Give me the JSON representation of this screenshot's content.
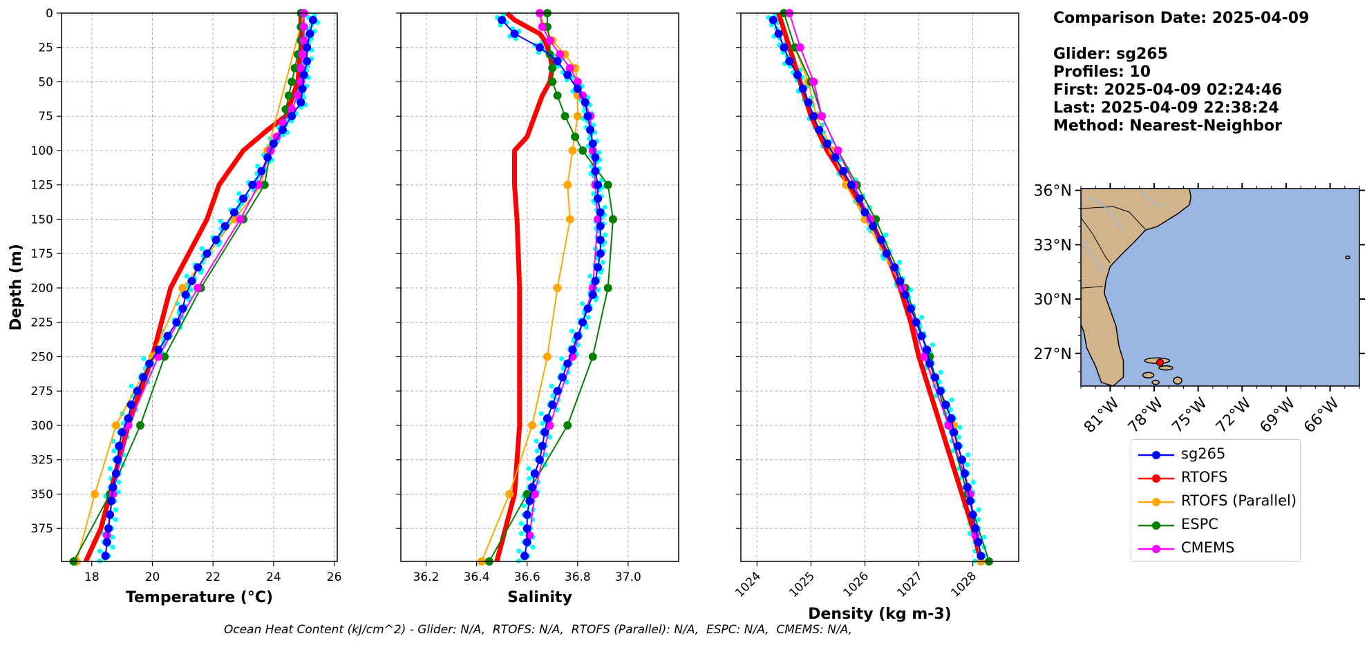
{
  "info": {
    "comparison_date": "Comparison Date: 2025-04-09",
    "glider": "Glider: sg265",
    "profiles": "Profiles: 10",
    "first": "First: 2025-04-09 02:24:46",
    "last": "Last: 2025-04-09 22:38:24",
    "method": "Method: Nearest-Neighbor"
  },
  "footer": "Ocean Heat Content (kJ/cm^2) - Glider: N/A,  RTOFS: N/A,  RTOFS (Parallel): N/A,  ESPC: N/A,  CMEMS: N/A,",
  "colors": {
    "sg265": "#0000ff",
    "rtofs": "#ff0000",
    "rtofs_parallel": "#ffa500",
    "espc": "#008000",
    "cmems": "#ff00ff",
    "raw": "#00ffff",
    "land": "#d2b48c",
    "ocean": "#9ab6e3"
  },
  "legend": [
    "sg265",
    "RTOFS",
    "RTOFS (Parallel)",
    "ESPC",
    "CMEMS"
  ],
  "map": {
    "lat_labels": [
      "36°N",
      "33°N",
      "30°N",
      "27°N"
    ],
    "lon_labels": [
      "81°W",
      "78°W",
      "75°W",
      "72°W",
      "69°W",
      "66°W"
    ],
    "lat_range": [
      25.2,
      36.1
    ],
    "lon_range": [
      -83,
      -64
    ],
    "glider_position": [
      -77.6,
      26.5
    ]
  },
  "chart_data": [
    {
      "type": "line",
      "xlabel": "Temperature (°C)",
      "ylabel": "Depth (m)",
      "xlim": [
        17,
        26.1
      ],
      "ylim": [
        399,
        0
      ],
      "xticks": [
        18,
        20,
        22,
        24,
        26
      ],
      "yticks": [
        0,
        25,
        50,
        75,
        100,
        125,
        150,
        175,
        200,
        225,
        250,
        275,
        300,
        325,
        350,
        375
      ],
      "grid": true,
      "series": [
        {
          "name": "sg265",
          "depth": [
            5,
            15,
            25,
            35,
            45,
            55,
            65,
            75,
            85,
            95,
            105,
            115,
            125,
            135,
            145,
            155,
            165,
            175,
            185,
            195,
            205,
            215,
            225,
            235,
            245,
            255,
            265,
            275,
            285,
            295,
            305,
            315,
            325,
            335,
            345,
            355,
            365,
            375,
            385,
            395
          ],
          "values": [
            25.3,
            25.2,
            25.1,
            25.1,
            25.0,
            24.95,
            24.9,
            24.6,
            24.3,
            24.0,
            23.8,
            23.6,
            23.3,
            23.0,
            22.7,
            22.4,
            22.1,
            21.8,
            21.5,
            21.3,
            21.1,
            21.0,
            20.8,
            20.5,
            20.2,
            19.9,
            19.7,
            19.5,
            19.3,
            19.2,
            19.0,
            18.9,
            18.85,
            18.8,
            18.7,
            18.65,
            18.6,
            18.55,
            18.5,
            18.45
          ]
        },
        {
          "name": "RTOFS",
          "depth": [
            0,
            10,
            25,
            50,
            75,
            85,
            100,
            125,
            150,
            175,
            200,
            225,
            250,
            275,
            300,
            325,
            350,
            375,
            399
          ],
          "values": [
            24.9,
            24.9,
            24.9,
            24.8,
            24.4,
            23.8,
            23.0,
            22.2,
            21.8,
            21.2,
            20.6,
            20.3,
            20.0,
            19.6,
            19.2,
            18.9,
            18.6,
            18.3,
            17.8
          ]
        },
        {
          "name": "RTOFS (Parallel)",
          "depth": [
            0,
            100,
            125,
            150,
            200,
            250,
            300,
            350,
            399
          ],
          "values": [
            25.0,
            23.8,
            23.6,
            22.7,
            21.0,
            20.0,
            18.8,
            18.1,
            17.5
          ]
        },
        {
          "name": "ESPC",
          "depth": [
            0,
            10,
            20,
            30,
            40,
            50,
            60,
            70,
            80,
            90,
            100,
            125,
            150,
            200,
            250,
            300,
            350,
            399
          ],
          "values": [
            24.9,
            24.9,
            24.9,
            24.8,
            24.7,
            24.6,
            24.5,
            24.4,
            24.3,
            24.1,
            23.9,
            23.7,
            23.0,
            21.6,
            20.4,
            19.6,
            18.6,
            17.4
          ]
        },
        {
          "name": "CMEMS",
          "depth": [
            0,
            10,
            20,
            30,
            40,
            50,
            60,
            70,
            80,
            90,
            100,
            125,
            150,
            200,
            250,
            300,
            350,
            380
          ],
          "values": [
            25.0,
            25.0,
            25.0,
            24.95,
            24.9,
            24.9,
            24.8,
            24.6,
            24.3,
            24.1,
            23.9,
            23.5,
            22.9,
            21.5,
            20.2,
            19.2,
            18.7,
            18.5
          ]
        }
      ]
    },
    {
      "type": "line",
      "xlabel": "Salinity",
      "ylabel": "",
      "xlim": [
        36.1,
        37.2
      ],
      "ylim": [
        399,
        0
      ],
      "xticks": [
        36.2,
        36.4,
        36.6,
        36.8,
        37.0
      ],
      "yticks": [
        0,
        25,
        50,
        75,
        100,
        125,
        150,
        175,
        200,
        225,
        250,
        275,
        300,
        325,
        350,
        375
      ],
      "grid": true,
      "series": [
        {
          "name": "sg265",
          "depth": [
            5,
            15,
            25,
            35,
            45,
            55,
            65,
            75,
            85,
            95,
            105,
            115,
            125,
            135,
            145,
            155,
            165,
            175,
            185,
            195,
            205,
            215,
            225,
            235,
            245,
            255,
            265,
            275,
            285,
            295,
            305,
            315,
            325,
            335,
            345,
            355,
            365,
            375,
            385,
            395
          ],
          "values": [
            36.5,
            36.55,
            36.65,
            36.72,
            36.76,
            36.8,
            36.83,
            36.84,
            36.85,
            36.86,
            36.87,
            36.87,
            36.88,
            36.88,
            36.89,
            36.89,
            36.89,
            36.89,
            36.88,
            36.87,
            36.86,
            36.84,
            36.82,
            36.8,
            36.78,
            36.76,
            36.74,
            36.72,
            36.7,
            36.68,
            36.67,
            36.66,
            36.65,
            36.63,
            36.62,
            36.61,
            36.6,
            36.6,
            36.6,
            36.59
          ]
        },
        {
          "name": "RTOFS",
          "depth": [
            0,
            5,
            10,
            15,
            20,
            25,
            30,
            40,
            50,
            60,
            70,
            80,
            90,
            100,
            125,
            150,
            200,
            250,
            300,
            350,
            399
          ],
          "values": [
            36.52,
            36.55,
            36.6,
            36.65,
            36.67,
            36.68,
            36.69,
            36.7,
            36.69,
            36.66,
            36.64,
            36.62,
            36.6,
            36.55,
            36.55,
            36.56,
            36.57,
            36.57,
            36.57,
            36.55,
            36.48
          ]
        },
        {
          "name": "RTOFS (Parallel)",
          "depth": [
            0,
            10,
            20,
            30,
            40,
            50,
            60,
            75,
            100,
            125,
            150,
            200,
            250,
            300,
            350,
            399
          ],
          "values": [
            36.65,
            36.67,
            36.7,
            36.75,
            36.79,
            36.8,
            36.8,
            36.8,
            36.78,
            36.76,
            36.77,
            36.72,
            36.68,
            36.62,
            36.53,
            36.42
          ]
        },
        {
          "name": "ESPC",
          "depth": [
            0,
            10,
            20,
            30,
            40,
            50,
            60,
            75,
            90,
            100,
            125,
            150,
            200,
            250,
            300,
            350,
            399
          ],
          "values": [
            36.68,
            36.68,
            36.69,
            36.69,
            36.7,
            36.7,
            36.72,
            36.75,
            36.79,
            36.82,
            36.92,
            36.94,
            36.92,
            36.86,
            36.76,
            36.6,
            36.45
          ]
        },
        {
          "name": "CMEMS",
          "depth": [
            0,
            10,
            20,
            30,
            40,
            50,
            60,
            75,
            100,
            125,
            150,
            200,
            250,
            300,
            350,
            380
          ],
          "values": [
            36.65,
            36.66,
            36.69,
            36.73,
            36.77,
            36.8,
            36.82,
            36.85,
            36.86,
            36.87,
            36.88,
            36.86,
            36.78,
            36.69,
            36.63,
            36.61
          ]
        }
      ]
    },
    {
      "type": "line",
      "xlabel": "Density (kg m-3)",
      "ylabel": "",
      "xlim": [
        1023.7,
        1028.85
      ],
      "ylim": [
        399,
        0
      ],
      "xticks": [
        1024,
        1025,
        1026,
        1027,
        1028
      ],
      "yticks": [
        0,
        25,
        50,
        75,
        100,
        125,
        150,
        175,
        200,
        225,
        250,
        275,
        300,
        325,
        350,
        375
      ],
      "grid": true,
      "series": [
        {
          "name": "sg265",
          "depth": [
            5,
            15,
            25,
            35,
            45,
            55,
            65,
            75,
            85,
            95,
            105,
            115,
            125,
            135,
            145,
            155,
            165,
            175,
            185,
            195,
            205,
            215,
            225,
            235,
            245,
            255,
            265,
            275,
            285,
            295,
            305,
            315,
            325,
            335,
            345,
            355,
            365,
            375,
            385,
            395
          ],
          "values": [
            1024.3,
            1024.4,
            1024.5,
            1024.6,
            1024.75,
            1024.85,
            1024.95,
            1025.05,
            1025.15,
            1025.3,
            1025.45,
            1025.6,
            1025.75,
            1025.9,
            1026.0,
            1026.15,
            1026.3,
            1026.4,
            1026.55,
            1026.65,
            1026.75,
            1026.85,
            1026.95,
            1027.05,
            1027.15,
            1027.2,
            1027.3,
            1027.4,
            1027.5,
            1027.6,
            1027.65,
            1027.72,
            1027.8,
            1027.85,
            1027.9,
            1027.95,
            1028.0,
            1028.05,
            1028.1,
            1028.15
          ]
        },
        {
          "name": "RTOFS",
          "depth": [
            0,
            25,
            50,
            75,
            100,
            125,
            150,
            175,
            200,
            225,
            250,
            275,
            300,
            325,
            350,
            375,
            399
          ],
          "values": [
            1024.4,
            1024.6,
            1024.8,
            1025.0,
            1025.3,
            1025.7,
            1026.1,
            1026.4,
            1026.65,
            1026.85,
            1027.0,
            1027.2,
            1027.4,
            1027.6,
            1027.8,
            1028.0,
            1028.15
          ]
        },
        {
          "name": "RTOFS (Parallel)",
          "depth": [
            0,
            25,
            50,
            75,
            100,
            125,
            150,
            200,
            250,
            300,
            350,
            399
          ],
          "values": [
            1024.5,
            1024.7,
            1024.95,
            1025.1,
            1025.4,
            1025.65,
            1026.0,
            1026.7,
            1027.1,
            1027.65,
            1027.95,
            1028.15
          ]
        },
        {
          "name": "ESPC",
          "depth": [
            0,
            25,
            50,
            75,
            100,
            125,
            150,
            200,
            250,
            300,
            350,
            399
          ],
          "values": [
            1024.5,
            1024.7,
            1025.0,
            1025.2,
            1025.5,
            1025.85,
            1026.2,
            1026.75,
            1027.2,
            1027.55,
            1027.9,
            1028.3
          ]
        },
        {
          "name": "CMEMS",
          "depth": [
            0,
            25,
            50,
            75,
            100,
            125,
            150,
            200,
            250,
            300,
            350,
            380
          ],
          "values": [
            1024.6,
            1024.8,
            1025.05,
            1025.2,
            1025.5,
            1025.8,
            1026.1,
            1026.7,
            1027.1,
            1027.55,
            1027.95,
            1028.05
          ]
        }
      ]
    }
  ]
}
